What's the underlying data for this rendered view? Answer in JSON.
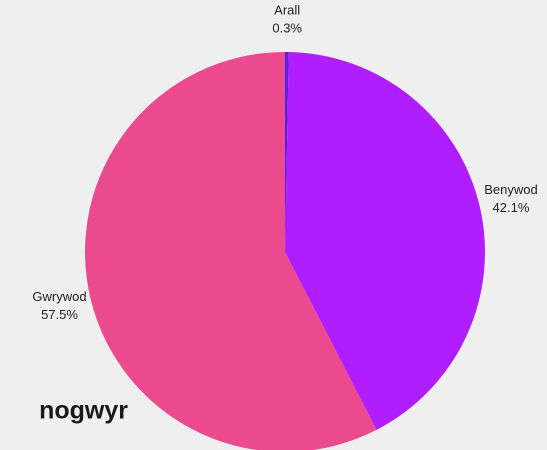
{
  "heading": "nogwyr",
  "chart_data": {
    "type": "pie",
    "categories": [
      "Arall",
      "Benywod",
      "Gwrywod"
    ],
    "values": [
      0.3,
      42.1,
      57.5
    ],
    "value_labels": [
      "0.3%",
      "42.1%",
      "57.5%"
    ],
    "colors": [
      "#5b1fe0",
      "#b01eff",
      "#ec4a8f"
    ]
  }
}
